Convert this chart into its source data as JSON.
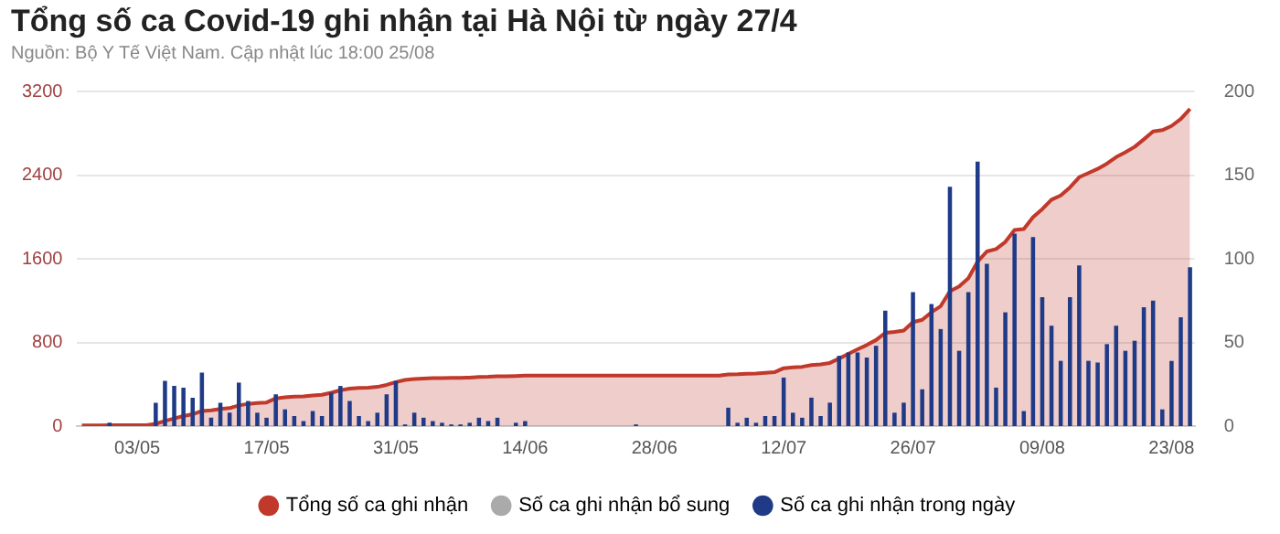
{
  "chart_data": {
    "type": "bar",
    "title": "Tổng số ca Covid-19 ghi nhận tại Hà Nội từ ngày 27/4",
    "subtitle": "Nguồn: Bộ Y Tế Việt Nam. Cập nhật lúc 18:00 25/08",
    "categories": [
      null,
      null,
      null,
      null,
      null,
      null,
      "03/05",
      null,
      null,
      null,
      null,
      null,
      null,
      null,
      null,
      null,
      null,
      null,
      null,
      null,
      "17/05",
      null,
      null,
      null,
      null,
      null,
      null,
      null,
      null,
      null,
      null,
      null,
      null,
      null,
      "31/05",
      null,
      null,
      null,
      null,
      null,
      null,
      null,
      null,
      null,
      null,
      null,
      null,
      null,
      "14/06",
      null,
      null,
      null,
      null,
      null,
      null,
      null,
      null,
      null,
      null,
      null,
      null,
      null,
      "28/06",
      null,
      null,
      null,
      null,
      null,
      null,
      null,
      null,
      null,
      null,
      null,
      null,
      null,
      "12/07",
      null,
      null,
      null,
      null,
      null,
      null,
      null,
      null,
      null,
      null,
      null,
      null,
      null,
      "26/07",
      null,
      null,
      null,
      null,
      null,
      null,
      null,
      null,
      null,
      null,
      null,
      null,
      null,
      "09/08",
      null,
      null,
      null,
      null,
      null,
      null,
      null,
      null,
      null,
      null,
      null,
      null,
      null,
      "23/08",
      null,
      null
    ],
    "series": [
      {
        "name": "Tổng số ca ghi nhận",
        "type": "area",
        "color": "#c0392b",
        "values": [
          6,
          6,
          6,
          8,
          8,
          8,
          8,
          8,
          22,
          49,
          73,
          96,
          113,
          145,
          150,
          164,
          172,
          198,
          213,
          221,
          226,
          265,
          275,
          281,
          284,
          293,
          299,
          319,
          343,
          358,
          364,
          367,
          375,
          394,
          421,
          442,
          450,
          455,
          458,
          460,
          461,
          462,
          464,
          469,
          472,
          477,
          477,
          479,
          482,
          482,
          482,
          482,
          482,
          482,
          482,
          482,
          482,
          482,
          482,
          482,
          483,
          483,
          483,
          483,
          483,
          483,
          483,
          483,
          483,
          483,
          494,
          496,
          501,
          503,
          509,
          515,
          554,
          562,
          567,
          584,
          590,
          604,
          646,
          690,
          734,
          775,
          823,
          892,
          900,
          914,
          994,
          1016,
          1089,
          1147,
          1290,
          1335,
          1415,
          1573,
          1670,
          1693,
          1761,
          1876,
          1885,
          1998,
          2075,
          2165,
          2205,
          2283,
          2380,
          2420,
          2460,
          2510,
          2572,
          2618,
          2670,
          2742,
          2818,
          2830,
          2870,
          2936,
          3032
        ]
      },
      {
        "name": "Số ca ghi nhận bổ sung",
        "axis": "y2",
        "color": "#aaaaaa",
        "values": [
          null,
          null,
          null,
          null,
          null,
          null,
          null,
          null,
          null,
          null,
          null,
          null,
          null,
          null,
          null,
          null,
          null,
          null,
          null,
          null,
          null,
          null,
          null,
          null,
          null,
          null,
          null,
          null,
          null,
          null,
          null,
          null,
          null,
          null,
          null,
          null,
          null,
          null,
          null,
          null,
          null,
          null,
          null,
          null,
          null,
          null,
          null,
          null,
          null,
          null,
          null,
          null,
          null,
          null,
          null,
          null,
          null,
          null,
          null,
          null,
          null,
          null,
          null,
          null,
          null,
          null,
          null,
          null,
          null,
          null,
          null,
          null,
          null,
          null,
          null,
          null,
          null,
          null,
          null,
          null,
          null,
          null,
          null,
          null,
          null,
          null,
          null,
          null,
          null,
          null,
          null,
          null,
          null,
          null,
          null,
          null,
          null,
          null,
          null,
          null,
          null,
          null,
          null,
          null,
          null,
          null,
          null,
          null,
          null,
          null,
          null,
          null,
          null,
          null,
          null,
          null,
          null,
          null,
          null,
          null,
          null
        ]
      },
      {
        "name": "Số ca ghi nhận trong ngày",
        "axis": "y2",
        "color": "#1f3b87",
        "values": [
          0,
          0,
          0,
          2,
          0,
          0,
          0,
          0,
          14,
          27,
          24,
          23,
          17,
          32,
          5,
          14,
          8,
          26,
          15,
          8,
          5,
          19,
          10,
          6,
          3,
          9,
          6,
          20,
          24,
          15,
          6,
          3,
          8,
          19,
          27,
          1,
          8,
          5,
          3,
          2,
          1,
          1,
          2,
          5,
          3,
          5,
          0,
          2,
          3,
          0,
          0,
          0,
          0,
          0,
          0,
          0,
          0,
          0,
          0,
          0,
          1,
          0,
          0,
          0,
          0,
          0,
          0,
          0,
          0,
          0,
          11,
          2,
          5,
          2,
          6,
          6,
          29,
          8,
          5,
          17,
          6,
          14,
          42,
          44,
          44,
          41,
          48,
          69,
          8,
          14,
          80,
          22,
          73,
          58,
          143,
          45,
          80,
          158,
          97,
          23,
          68,
          115,
          9,
          113,
          77,
          60,
          39,
          77,
          96,
          39,
          38,
          49,
          60,
          45,
          51,
          71,
          75,
          10,
          39,
          65,
          95
        ]
      }
    ],
    "ylim": [
      0,
      3200
    ],
    "yticks": [
      0,
      800,
      1600,
      2400,
      3200
    ],
    "y2lim": [
      0,
      200
    ],
    "y2ticks": [
      0,
      50,
      100,
      150,
      200
    ],
    "grid": "y",
    "legend": "bottom",
    "marker": "none"
  }
}
